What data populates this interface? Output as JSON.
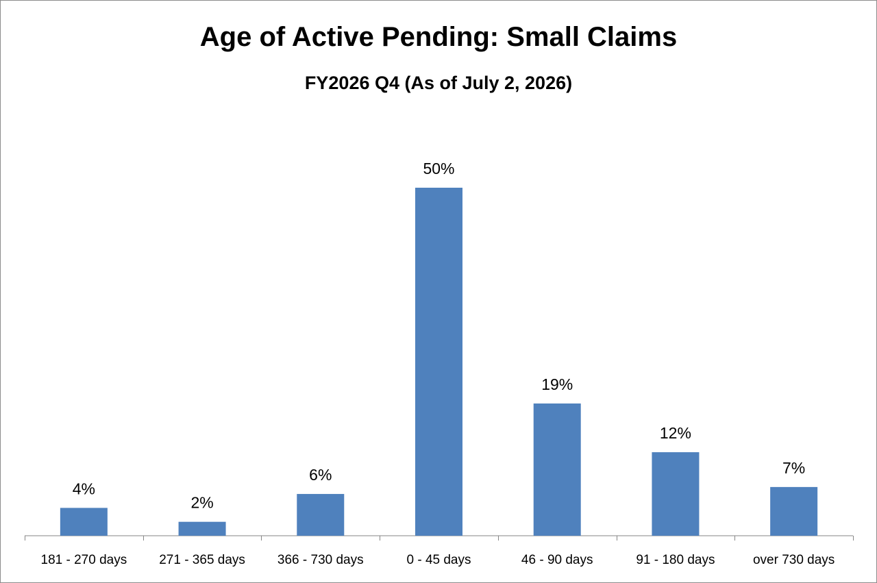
{
  "chart_data": {
    "type": "bar",
    "title": "Age of Active Pending: Small Claims",
    "subtitle": "FY2026 Q4 (As of July 2, 2026)",
    "xlabel": "",
    "ylabel": "",
    "categories": [
      "181 - 270 days",
      "271 - 365 days",
      "366 - 730 days",
      "0 - 45 days",
      "46 - 90 days",
      "91 - 180 days",
      "over 730 days"
    ],
    "values": [
      4,
      2,
      6,
      50,
      19,
      12,
      7
    ],
    "data_labels": [
      "4%",
      "2%",
      "6%",
      "50%",
      "19%",
      "12%",
      "7%"
    ],
    "ylim": [
      0,
      50
    ],
    "grid": false,
    "legend": "none",
    "bar_color": "#4f81bd"
  }
}
